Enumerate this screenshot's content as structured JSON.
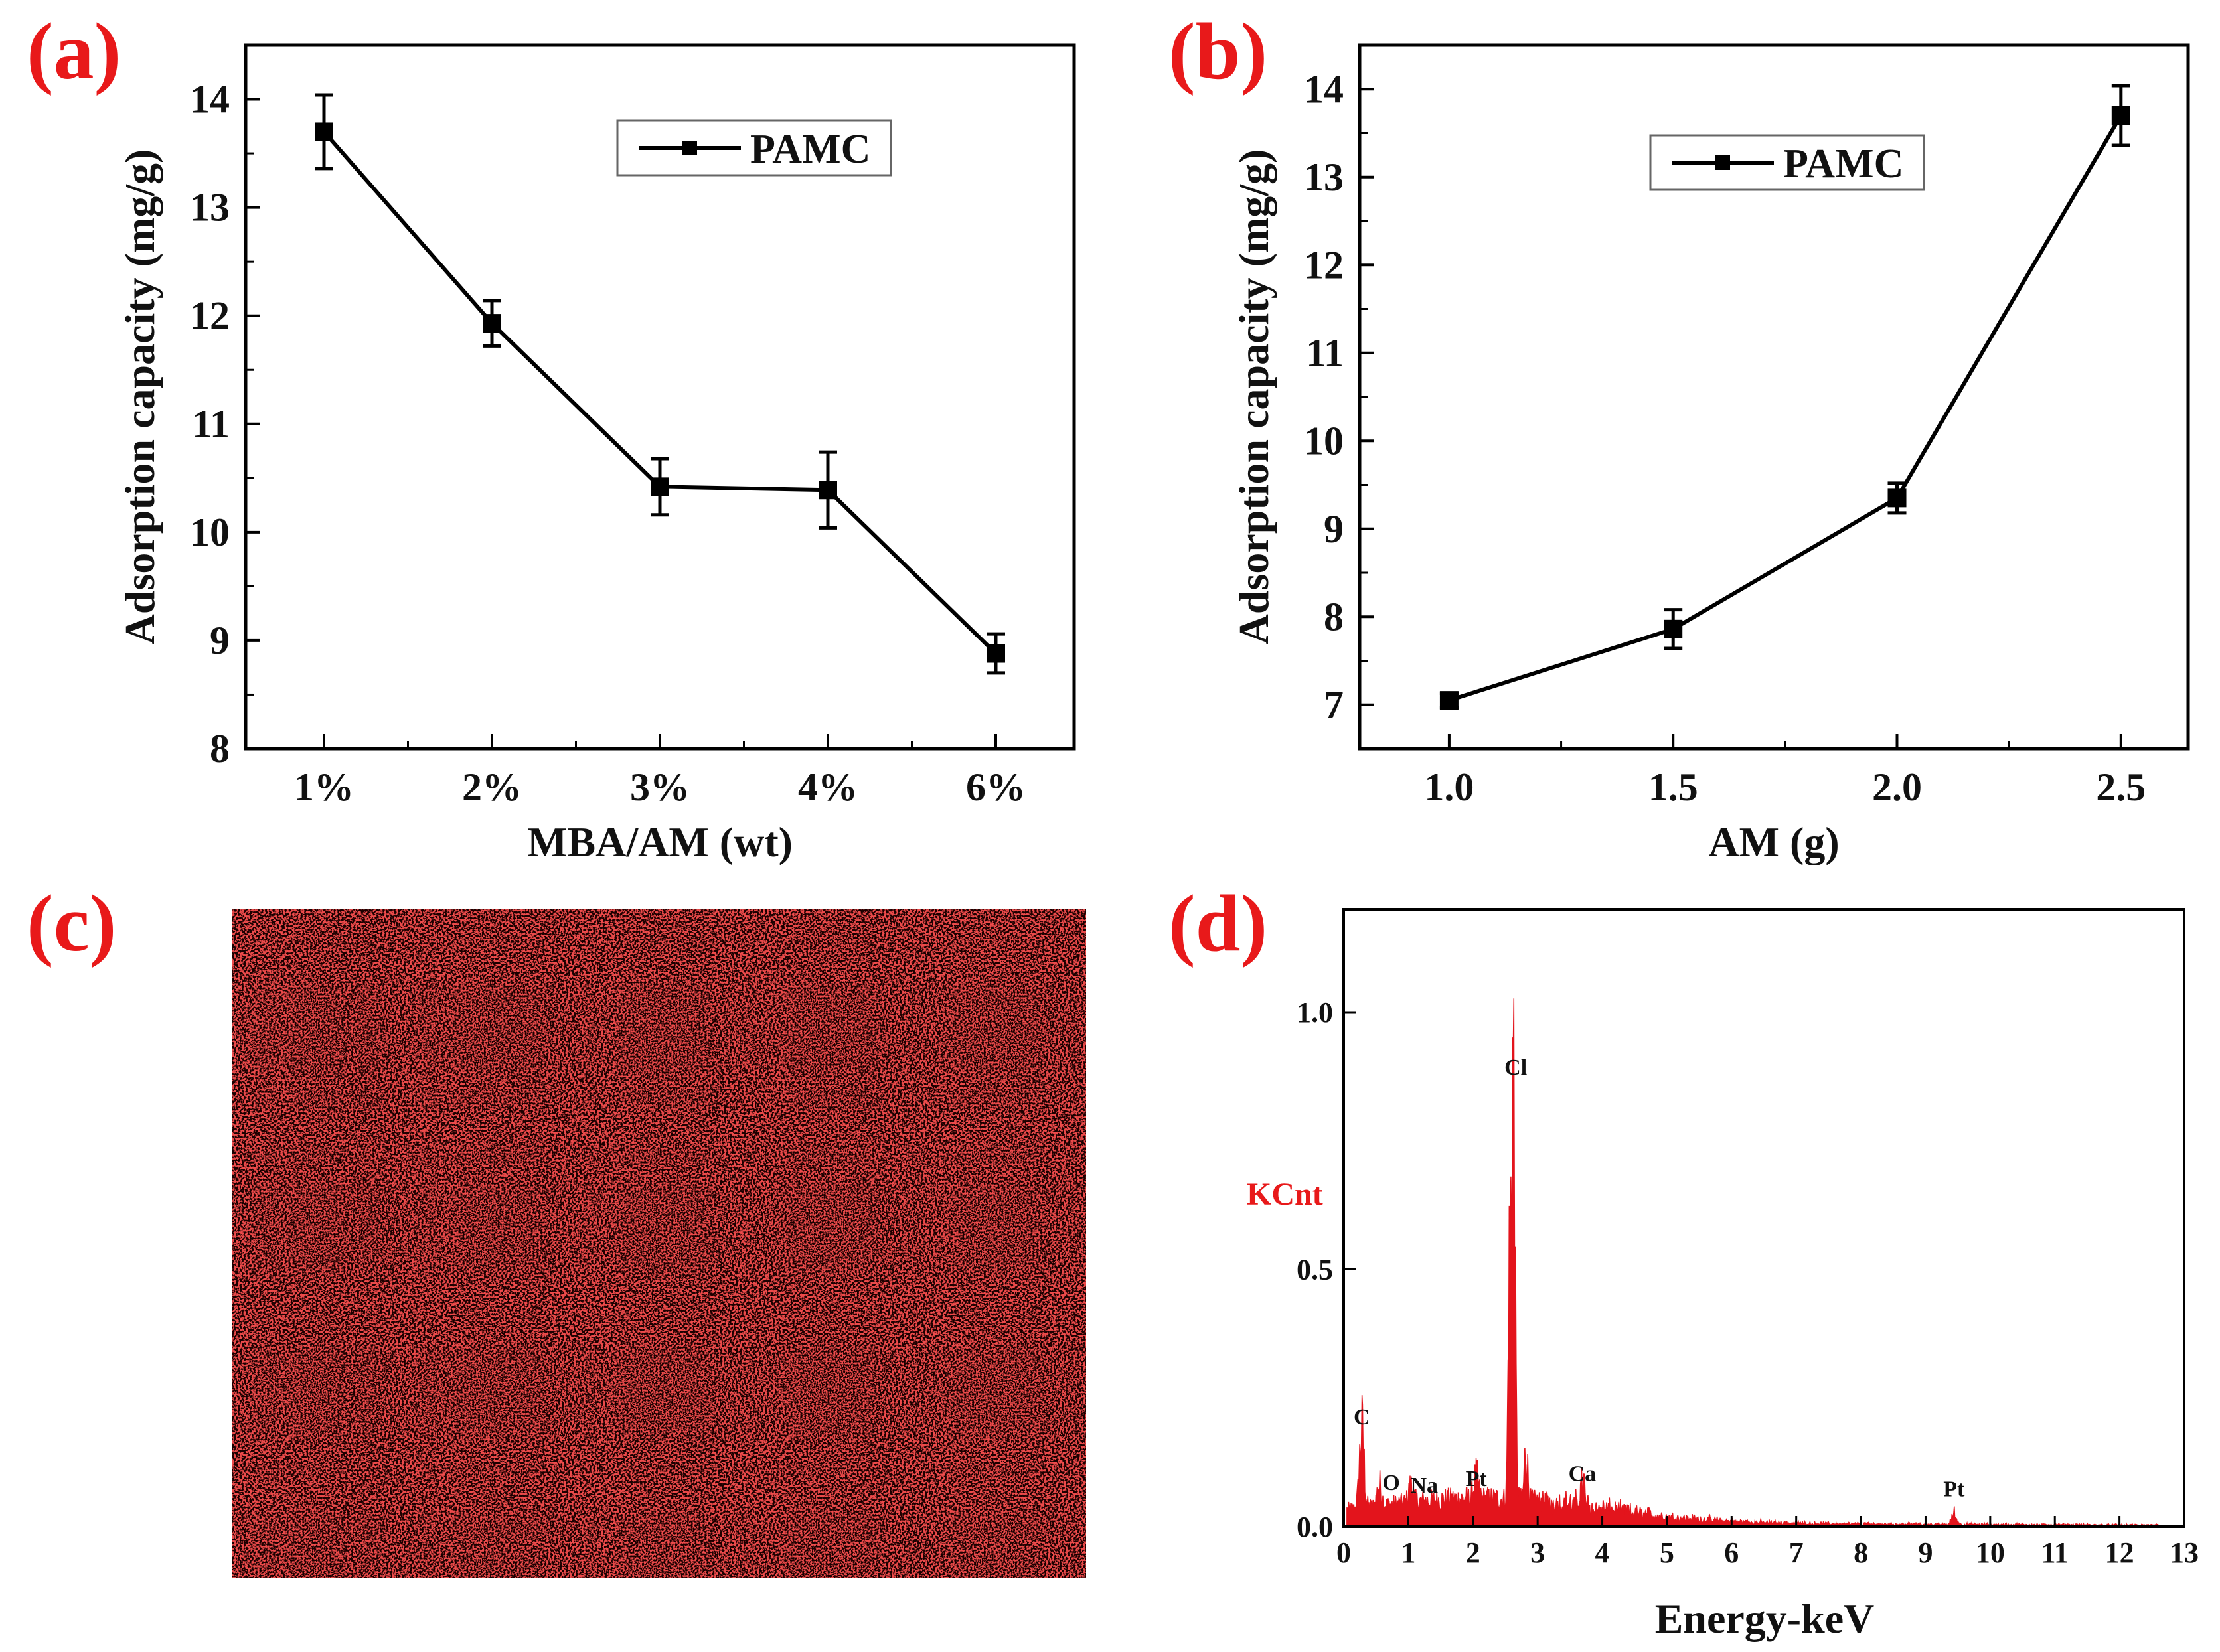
{
  "colors": {
    "label_red": "#e8191a",
    "line": "#000000",
    "spectrum": "#e3141c",
    "map_red": "#d41515",
    "map_dark": "#1a0606"
  },
  "panels": {
    "a": {
      "label": "(a)"
    },
    "b": {
      "label": "(b)"
    },
    "c": {
      "label": "(c)"
    },
    "d": {
      "label": "(d)"
    }
  },
  "chart_data": [
    {
      "panel": "a",
      "type": "line",
      "categories": [
        "1%",
        "2%",
        "3%",
        "4%",
        "6%"
      ],
      "series": [
        {
          "name": "PAMC",
          "values": [
            13.7,
            11.93,
            10.42,
            10.39,
            8.88
          ],
          "errors": [
            0.34,
            0.21,
            0.26,
            0.35,
            0.18
          ]
        }
      ],
      "xlabel": "MBA/AM (wt)",
      "ylabel": "Adsorption capacity (mg/g)",
      "ylim": [
        8,
        14.5
      ],
      "yticks": [
        "8",
        "9",
        "10",
        "11",
        "12",
        "13",
        "14"
      ],
      "legend": "top-right"
    },
    {
      "panel": "b",
      "type": "line",
      "x": [
        1.0,
        1.5,
        2.0,
        2.5
      ],
      "series": [
        {
          "name": "PAMC",
          "values": [
            7.05,
            7.86,
            9.35,
            13.7
          ],
          "errors": [
            0.08,
            0.22,
            0.17,
            0.34
          ]
        }
      ],
      "xlabel": "AM (g)",
      "ylabel": "Adsorption capacity (mg/g)",
      "xlim": [
        0.8,
        2.65
      ],
      "ylim": [
        6.5,
        14.5
      ],
      "xticks": [
        "1.0",
        "1.5",
        "2.0",
        "2.5"
      ],
      "yticks": [
        "7",
        "8",
        "9",
        "10",
        "11",
        "12",
        "13",
        "14"
      ],
      "legend": "top-left"
    },
    {
      "panel": "d",
      "type": "line",
      "xlabel": "Energy-keV",
      "ylabel": "KCnt",
      "xlim": [
        0,
        13
      ],
      "ylim": [
        0,
        1.2
      ],
      "xticks": [
        "0",
        "1",
        "2",
        "3",
        "4",
        "5",
        "6",
        "7",
        "8",
        "9",
        "10",
        "11",
        "12",
        "13"
      ],
      "yticks": [
        "0.0",
        "0.5",
        "1.0"
      ],
      "peaks": [
        {
          "label": "C",
          "x": 0.28,
          "y": 0.15
        },
        {
          "label": "O",
          "x": 0.55,
          "y": 0.04
        },
        {
          "label": "Na",
          "x": 1.04,
          "y": 0.03
        },
        {
          "label": "Pt",
          "x": 2.05,
          "y": 0.04
        },
        {
          "label": "Cl",
          "x": 2.62,
          "y": 0.84
        },
        {
          "label": "Ca",
          "x": 3.69,
          "y": 0.05
        },
        {
          "label": "Pt",
          "x": 9.44,
          "y": 0.02
        }
      ]
    }
  ]
}
